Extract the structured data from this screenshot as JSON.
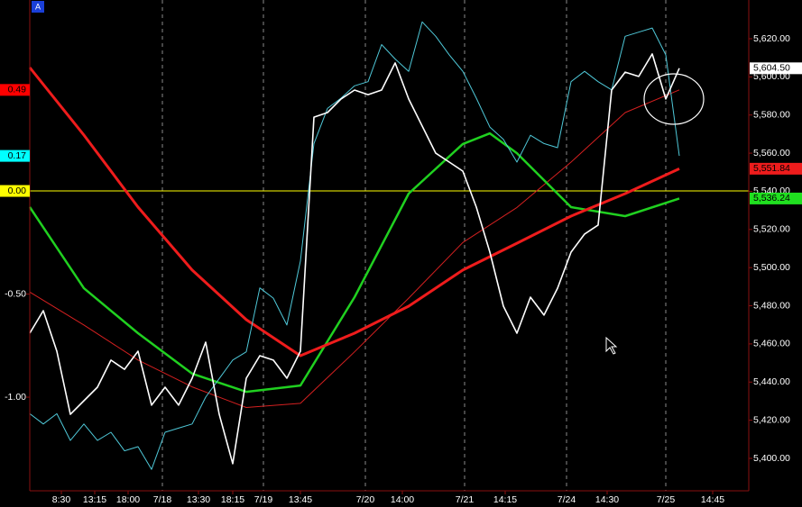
{
  "chart_data": {
    "type": "line",
    "label": "A",
    "xlim": [
      0,
      797
    ],
    "xticks": [
      {
        "value": 35,
        "label": "8:30"
      },
      {
        "value": 72,
        "label": "13:15"
      },
      {
        "value": 109,
        "label": "18:00"
      },
      {
        "value": 147,
        "label": "7/18"
      },
      {
        "value": 187,
        "label": "13:30"
      },
      {
        "value": 225,
        "label": "18:15"
      },
      {
        "value": 259,
        "label": "7/19"
      },
      {
        "value": 300,
        "label": "13:45"
      },
      {
        "value": 372,
        "label": "7/20"
      },
      {
        "value": 413,
        "label": "14:00"
      },
      {
        "value": 482,
        "label": "7/21"
      },
      {
        "value": 527,
        "label": "14:15"
      },
      {
        "value": 595,
        "label": "7/24"
      },
      {
        "value": 640,
        "label": "14:30"
      },
      {
        "value": 705,
        "label": "7/25"
      },
      {
        "value": 757,
        "label": "14:45"
      }
    ],
    "ylim": [
      5383,
      5640.3
    ],
    "yticks": [
      {
        "value": 5400,
        "label": "5,400.00"
      },
      {
        "value": 5420,
        "label": "5,420.00"
      },
      {
        "value": 5440,
        "label": "5,440.00"
      },
      {
        "value": 5460,
        "label": "5,460.00"
      },
      {
        "value": 5480,
        "label": "5,480.00"
      },
      {
        "value": 5500,
        "label": "5,500.00"
      },
      {
        "value": 5520,
        "label": "5,520.00"
      },
      {
        "value": 5540,
        "label": "5,540.00"
      },
      {
        "value": 5560,
        "label": "5,560.00"
      },
      {
        "value": 5580,
        "label": "5,580.00"
      },
      {
        "value": 5600,
        "label": "5,600.00"
      },
      {
        "value": 5620,
        "label": "5,620.00"
      }
    ],
    "y2lim": [
      -1.454,
      0.926
    ],
    "y2ticks": [
      {
        "value": -1,
        "label": "-1.00"
      },
      {
        "value": -0.5,
        "label": "-0.50"
      }
    ],
    "reference_line": {
      "value": 0,
      "label": "0.00",
      "color": "#ffff00",
      "axis": "y2"
    },
    "series": [
      {
        "color": "#d42020",
        "width": 1,
        "axis": "y2",
        "label_color": "#ff0000",
        "x": [
          0,
          60,
          120,
          180,
          240,
          300,
          360,
          420,
          480,
          540,
          600,
          660,
          720
        ],
        "values": [
          -0.49,
          -0.65,
          -0.82,
          -0.95,
          -1.05,
          -1.03,
          -0.78,
          -0.52,
          -0.25,
          -0.08,
          0.14,
          0.38,
          0.49
        ],
        "last_label": "0.49"
      },
      {
        "color": "#20d020",
        "width": 2.5,
        "axis": "y",
        "label_color": "#20e020",
        "x": [
          0,
          60,
          120,
          180,
          240,
          300,
          360,
          420,
          480,
          510,
          540,
          600,
          660,
          720
        ],
        "values": [
          5531.7,
          5489.2,
          5465.6,
          5444.4,
          5434.9,
          5438.2,
          5484.5,
          5538.8,
          5564.8,
          5570.4,
          5560.0,
          5531.7,
          5527.0,
          5536.24
        ],
        "last_label": "5,536.24"
      },
      {
        "color": "#ee1c1c",
        "width": 3,
        "axis": "y",
        "label_color": "#ee1c1c",
        "x": [
          0,
          60,
          120,
          180,
          240,
          300,
          360,
          420,
          480,
          540,
          600,
          660,
          720
        ],
        "values": [
          5604.9,
          5569.5,
          5531.7,
          5498.7,
          5472.7,
          5453.8,
          5465.6,
          5479.8,
          5498.7,
          5512.8,
          5527.0,
          5538.8,
          5551.84
        ],
        "last_label": "5,551.84"
      },
      {
        "color": "#4fc8d8",
        "width": 1,
        "axis": "y2",
        "label_color": "#00ffff",
        "x": [
          0,
          15,
          30,
          45,
          60,
          75,
          90,
          105,
          120,
          135,
          150,
          165,
          180,
          195,
          210,
          225,
          240,
          255,
          270,
          285,
          300,
          315,
          330,
          345,
          360,
          375,
          390,
          405,
          420,
          435,
          450,
          465,
          480,
          495,
          510,
          525,
          540,
          555,
          570,
          585,
          600,
          615,
          630,
          645,
          660,
          675,
          690,
          705,
          720
        ],
        "values": [
          -1.08,
          -1.13,
          -1.08,
          -1.21,
          -1.13,
          -1.21,
          -1.17,
          -1.26,
          -1.24,
          -1.35,
          -1.17,
          -1.15,
          -1.13,
          -1.0,
          -0.91,
          -0.82,
          -0.78,
          -0.47,
          -0.52,
          -0.65,
          -0.34,
          0.23,
          0.4,
          0.45,
          0.51,
          0.53,
          0.71,
          0.64,
          0.58,
          0.82,
          0.75,
          0.66,
          0.58,
          0.45,
          0.31,
          0.25,
          0.14,
          0.27,
          0.23,
          0.21,
          0.53,
          0.58,
          0.53,
          0.49,
          0.75,
          0.77,
          0.79,
          0.66,
          0.17
        ],
        "last_label": "0.17"
      },
      {
        "color": "#ffffff",
        "width": 1.6,
        "axis": "y",
        "label_color": "#ffffff",
        "x": [
          0,
          15,
          30,
          45,
          60,
          75,
          90,
          105,
          120,
          135,
          150,
          165,
          180,
          195,
          210,
          225,
          240,
          255,
          270,
          285,
          300,
          315,
          330,
          345,
          360,
          375,
          390,
          405,
          420,
          435,
          450,
          465,
          480,
          495,
          510,
          525,
          540,
          555,
          570,
          585,
          600,
          615,
          630,
          645,
          660,
          675,
          690,
          705,
          720
        ],
        "values": [
          5465.6,
          5477.4,
          5456.2,
          5423.1,
          5430.2,
          5437.3,
          5451.5,
          5446.7,
          5456.2,
          5427.9,
          5437.3,
          5427.9,
          5442.0,
          5460.9,
          5423.1,
          5397.2,
          5442.0,
          5453.8,
          5451.5,
          5442.0,
          5456.2,
          5578.9,
          5581.3,
          5588.4,
          5593.1,
          5590.7,
          5593.1,
          5607.3,
          5588.4,
          5574.2,
          5560.0,
          5555.3,
          5550.6,
          5531.7,
          5508.1,
          5479.8,
          5465.6,
          5484.5,
          5475.1,
          5489.2,
          5508.1,
          5517.6,
          5522.3,
          5593.1,
          5602.5,
          5600.2,
          5612.0,
          5588.4,
          5604.5
        ],
        "last_label": "5,604.50"
      }
    ]
  }
}
